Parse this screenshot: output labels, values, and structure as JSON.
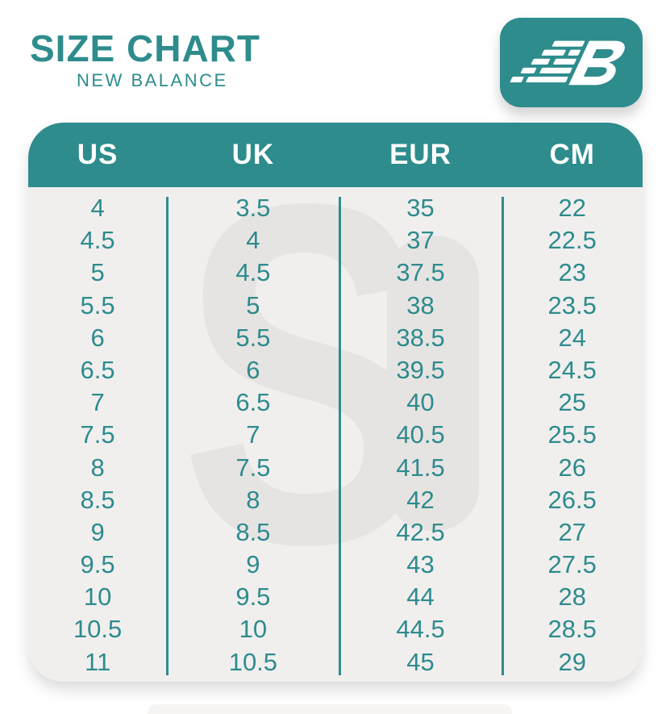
{
  "header": {
    "title": "SIZE CHART",
    "subtitle": "NEW BALANCE"
  },
  "logo": {
    "icon": "new-balance-nb-logo",
    "bg_color": "#2e8c8d"
  },
  "watermark": {
    "letter": "S"
  },
  "colors": {
    "teal": "#2e8c8d",
    "table_bg": "#f0efee",
    "header_text": "#ffffff",
    "body_text": "#2e8b8d",
    "watermark_gray": "#e6e4e2"
  },
  "table": {
    "columns": [
      "US",
      "UK",
      "EUR",
      "CM"
    ],
    "rows": [
      [
        "4",
        "3.5",
        "35",
        "22"
      ],
      [
        "4.5",
        "4",
        "37",
        "22.5"
      ],
      [
        "5",
        "4.5",
        "37.5",
        "23"
      ],
      [
        "5.5",
        "5",
        "38",
        "23.5"
      ],
      [
        "6",
        "5.5",
        "38.5",
        "24"
      ],
      [
        "6.5",
        "6",
        "39.5",
        "24.5"
      ],
      [
        "7",
        "6.5",
        "40",
        "25"
      ],
      [
        "7.5",
        "7",
        "40.5",
        "25.5"
      ],
      [
        "8",
        "7.5",
        "41.5",
        "26"
      ],
      [
        "8.5",
        "8",
        "42",
        "26.5"
      ],
      [
        "9",
        "8.5",
        "42.5",
        "27"
      ],
      [
        "9.5",
        "9",
        "43",
        "27.5"
      ],
      [
        "10",
        "9.5",
        "44",
        "28"
      ],
      [
        "10.5",
        "10",
        "44.5",
        "28.5"
      ],
      [
        "11",
        "10.5",
        "45",
        "29"
      ]
    ]
  }
}
